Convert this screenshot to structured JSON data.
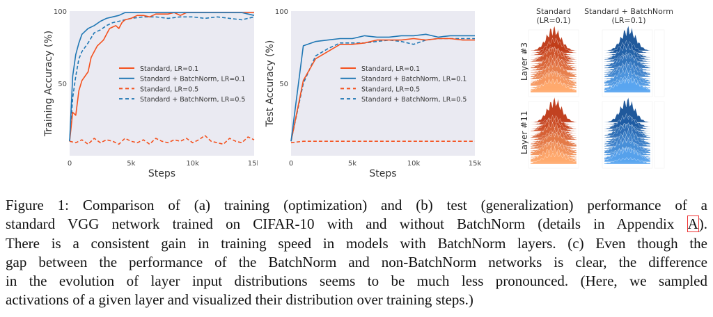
{
  "chart_data": [
    {
      "type": "line",
      "panel": "a",
      "title": "",
      "xlabel": "Steps",
      "ylabel": "Training Accuracy (%)",
      "xlim": [
        0,
        15000
      ],
      "ylim": [
        0,
        100
      ],
      "xticks": [
        0,
        5000,
        10000,
        15000
      ],
      "xtick_labels": [
        "0",
        "5k",
        "10k",
        "15k"
      ],
      "yticks": [
        50,
        100
      ],
      "ytick_labels": [
        "50",
        "100"
      ],
      "grid": false,
      "legend_position": "center-right",
      "series": [
        {
          "name": "Standard, LR=0.1",
          "color": "#f4511e",
          "dash": "solid",
          "x": [
            0,
            250,
            500,
            750,
            1000,
            1250,
            1500,
            1750,
            2000,
            2250,
            2500,
            2750,
            3000,
            3250,
            3500,
            3750,
            4000,
            4250,
            4500,
            5000,
            5500,
            6000,
            6500,
            7000,
            7500,
            8000,
            8500,
            9000,
            9500,
            10000,
            11000,
            12000,
            13000,
            14000,
            15000
          ],
          "y": [
            10,
            30,
            28,
            45,
            52,
            55,
            58,
            68,
            72,
            76,
            78,
            80,
            84,
            88,
            89,
            90,
            88,
            92,
            94,
            95,
            97,
            97,
            96,
            98,
            98,
            98,
            99,
            97,
            99,
            99,
            99,
            99,
            99,
            99,
            99
          ]
        },
        {
          "name": "Standard + BatchNorm, LR=0.1",
          "color": "#1f77b4",
          "dash": "solid",
          "x": [
            0,
            250,
            500,
            750,
            1000,
            1500,
            2000,
            2500,
            3000,
            3500,
            4000,
            4500,
            5000,
            6000,
            7000,
            8000,
            9000,
            10000,
            11000,
            12000,
            13000,
            14000,
            15000
          ],
          "y": [
            10,
            55,
            70,
            78,
            84,
            88,
            90,
            93,
            95,
            96,
            97,
            99,
            99,
            99,
            99,
            99,
            99,
            99,
            99,
            99,
            99,
            99,
            97
          ]
        },
        {
          "name": "Standard, LR=0.5",
          "color": "#f4511e",
          "dash": "dashed",
          "x": [
            0,
            500,
            1000,
            1500,
            2000,
            2500,
            3000,
            3500,
            4000,
            4500,
            5000,
            5500,
            6000,
            6500,
            7000,
            7500,
            8000,
            8500,
            9000,
            9500,
            10000,
            10500,
            11000,
            11500,
            12000,
            12500,
            13000,
            13500,
            14000,
            14500,
            15000
          ],
          "y": [
            10,
            9,
            11,
            8,
            12,
            9,
            11,
            10,
            8,
            12,
            10,
            9,
            11,
            8,
            12,
            10,
            9,
            11,
            10,
            12,
            9,
            11,
            14,
            10,
            9,
            8,
            12,
            10,
            9,
            13,
            11
          ]
        },
        {
          "name": "Standard + BatchNorm, LR=0.5",
          "color": "#1f77b4",
          "dash": "dashed",
          "x": [
            0,
            250,
            500,
            750,
            1000,
            1500,
            2000,
            2500,
            3000,
            3500,
            4000,
            5000,
            6000,
            7000,
            8000,
            9000,
            10000,
            11000,
            12000,
            13000,
            14000,
            15000
          ],
          "y": [
            10,
            40,
            55,
            67,
            72,
            78,
            85,
            87,
            90,
            92,
            93,
            95,
            96,
            96,
            95,
            96,
            96,
            95,
            96,
            95,
            94,
            96
          ]
        }
      ]
    },
    {
      "type": "line",
      "panel": "b",
      "title": "",
      "xlabel": "Steps",
      "ylabel": "Test Accuracy (%)",
      "xlim": [
        0,
        15000
      ],
      "ylim": [
        0,
        100
      ],
      "xticks": [
        0,
        5000,
        10000,
        15000
      ],
      "xtick_labels": [
        "0",
        "5k",
        "10k",
        "15k"
      ],
      "yticks": [
        50,
        100
      ],
      "ytick_labels": [
        "50",
        "100"
      ],
      "grid": false,
      "legend_position": "center-right",
      "series": [
        {
          "name": "Standard, LR=0.1",
          "color": "#f4511e",
          "dash": "solid",
          "x": [
            0,
            1000,
            2000,
            3000,
            4000,
            5000,
            6000,
            7000,
            8000,
            9000,
            10000,
            11000,
            12000,
            13000,
            14000,
            15000
          ],
          "y": [
            10,
            52,
            67,
            72,
            77,
            77,
            78,
            80,
            80,
            80,
            81,
            80,
            81,
            81,
            80,
            80
          ]
        },
        {
          "name": "Standard + BatchNorm, LR=0.1",
          "color": "#1f77b4",
          "dash": "solid",
          "x": [
            0,
            1000,
            2000,
            3000,
            4000,
            5000,
            6000,
            7000,
            8000,
            9000,
            10000,
            11000,
            12000,
            13000,
            14000,
            15000
          ],
          "y": [
            10,
            76,
            79,
            80,
            81,
            81,
            83,
            82,
            82,
            83,
            83,
            84,
            82,
            83,
            83,
            83
          ]
        },
        {
          "name": "Standard, LR=0.5",
          "color": "#f4511e",
          "dash": "dashed",
          "x": [
            0,
            1000,
            2000,
            3000,
            4000,
            5000,
            6000,
            7000,
            8000,
            9000,
            10000,
            11000,
            12000,
            13000,
            14000,
            15000
          ],
          "y": [
            9,
            10,
            10,
            10,
            10,
            10,
            10,
            10,
            10,
            10,
            10,
            10,
            10,
            10,
            10,
            10
          ]
        },
        {
          "name": "Standard + BatchNorm, LR=0.5",
          "color": "#1f77b4",
          "dash": "dashed",
          "x": [
            0,
            1000,
            2000,
            3000,
            4000,
            5000,
            6000,
            7000,
            8000,
            9000,
            10000,
            11000,
            12000,
            13000,
            14000,
            15000
          ],
          "y": [
            10,
            50,
            69,
            74,
            78,
            78,
            78,
            79,
            80,
            79,
            77,
            80,
            81,
            81,
            81,
            81
          ]
        }
      ]
    }
  ],
  "distributions": {
    "columns": [
      "Standard\n(LR=0.1)",
      "Standard + BatchNorm\n(LR=0.1)"
    ],
    "column_line1": [
      "Standard",
      "Standard + BatchNorm"
    ],
    "column_line2": [
      "(LR=0.1)",
      "(LR=0.1)"
    ],
    "rows": [
      "Layer #3",
      "Layer #11"
    ],
    "colors": {
      "standard": "#e8552a",
      "batchnorm": "#2f7fc4"
    }
  },
  "caption": {
    "lines": [
      "Figure 1: Comparison of (a) training (optimization) and (b) test (generalization) performance of a",
      "standard VGG network trained on CIFAR-10 with and without BatchNorm (details in Appendix",
      "There is a consistent gain in training speed in models with BatchNorm layers. (c) Even though the",
      "gap between the performance of the BatchNorm and non-BatchNorm networks is clear, the difference",
      "in the evolution of layer input distributions seems to be much less pronounced. (Here, we sampled",
      "activations of a given layer and visualized their distribution over training steps.)"
    ],
    "appendix_ref": "A",
    "line2_end": ")."
  }
}
